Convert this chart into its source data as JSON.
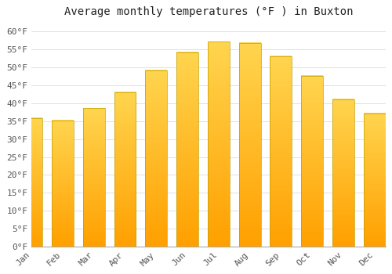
{
  "title": "Average monthly temperatures (°F ) in Buxton",
  "months": [
    "Jan",
    "Feb",
    "Mar",
    "Apr",
    "May",
    "Jun",
    "Jul",
    "Aug",
    "Sep",
    "Oct",
    "Nov",
    "Dec"
  ],
  "values": [
    35.8,
    35.2,
    38.5,
    43.0,
    49.0,
    54.0,
    57.0,
    56.7,
    53.0,
    47.5,
    41.0,
    37.0
  ],
  "bar_color_top": "#FFD54F",
  "bar_color_bottom": "#FFA000",
  "bar_edge_color": "#BFA000",
  "background_color": "#FFFFFF",
  "grid_color": "#E0E0E0",
  "title_fontsize": 10,
  "tick_fontsize": 8,
  "ylim": [
    0,
    62
  ],
  "yticks": [
    0,
    5,
    10,
    15,
    20,
    25,
    30,
    35,
    40,
    45,
    50,
    55,
    60
  ]
}
